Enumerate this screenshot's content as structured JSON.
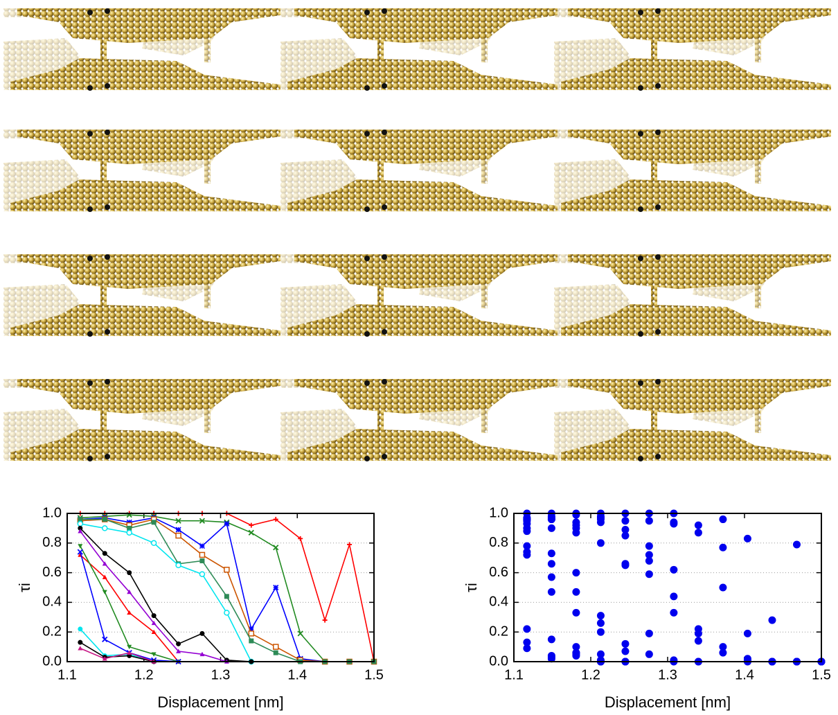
{
  "chart_data": [
    {
      "type": "line",
      "x_label": "Displacement [nm]",
      "y_label": "τi",
      "x": [
        1.117,
        1.149,
        1.181,
        1.213,
        1.245,
        1.276,
        1.308,
        1.34,
        1.372,
        1.404,
        1.436,
        1.468,
        1.5
      ],
      "xlim": [
        1.1,
        1.5
      ],
      "xticks": [
        1.1,
        1.2,
        1.3,
        1.4,
        1.5
      ],
      "ylim": [
        0,
        1
      ],
      "yticks": [
        {
          "value": 0,
          "label": "0.0"
        },
        {
          "value": 0.2,
          "label": "0.2"
        },
        {
          "value": 0.4,
          "label": "0.4"
        },
        {
          "value": 0.6,
          "label": "0.6"
        },
        {
          "value": 0.8,
          "label": "0.8"
        },
        {
          "value": 1,
          "label": "1.0"
        }
      ],
      "grid": true,
      "series": [
        {
          "color": "#ff0000",
          "marker": "plus",
          "values": [
            1.0,
            1.0,
            1.0,
            1.0,
            1.0,
            1.0,
            1.0,
            0.92,
            0.96,
            0.83,
            0.28,
            0.79,
            0.0
          ]
        },
        {
          "color": "#228b22",
          "marker": "x",
          "values": [
            0.97,
            0.98,
            0.99,
            0.98,
            0.95,
            0.95,
            0.94,
            0.87,
            0.77,
            0.19,
            0.0,
            0.0,
            0.0
          ]
        },
        {
          "color": "#0000ff",
          "marker": "star",
          "values": [
            0.96,
            0.97,
            0.94,
            0.97,
            0.89,
            0.78,
            0.93,
            0.22,
            0.5,
            0.02,
            0.0,
            0.0,
            0.0
          ]
        },
        {
          "color": "#cc5500",
          "marker": "open-square",
          "values": [
            0.95,
            0.96,
            0.92,
            0.96,
            0.85,
            0.72,
            0.62,
            0.19,
            0.1,
            0.01,
            0.0,
            0.0,
            0.0
          ]
        },
        {
          "color": "#2e8b57",
          "marker": "square",
          "values": [
            0.96,
            0.96,
            0.9,
            0.94,
            0.66,
            0.68,
            0.44,
            0.14,
            0.06,
            0.0,
            0.0,
            0.0,
            0.0
          ]
        },
        {
          "color": "#00e5ee",
          "marker": "open-circle",
          "values": [
            0.93,
            0.9,
            0.87,
            0.8,
            0.65,
            0.59,
            0.33,
            0.0,
            null,
            null,
            null,
            null,
            null
          ]
        },
        {
          "color": "#000000",
          "marker": "circle",
          "values": [
            0.9,
            0.73,
            0.6,
            0.31,
            0.12,
            0.19,
            0.01,
            0.0,
            null,
            null,
            null,
            null,
            null
          ]
        },
        {
          "color": "#9400d3",
          "marker": "triangle",
          "values": [
            0.88,
            0.66,
            0.47,
            0.26,
            0.07,
            0.05,
            0.0,
            null,
            null,
            null,
            null,
            null,
            null
          ]
        },
        {
          "color": "#ff0000",
          "marker": "triangle",
          "values": [
            0.72,
            0.57,
            0.33,
            0.2,
            0.0,
            null,
            null,
            null,
            null,
            null,
            null,
            null,
            null
          ]
        },
        {
          "color": "#228b22",
          "marker": "down-triangle",
          "values": [
            0.78,
            0.47,
            0.1,
            0.05,
            0.0,
            null,
            null,
            null,
            null,
            null,
            null,
            null,
            null
          ]
        },
        {
          "color": "#0000ff",
          "marker": "x",
          "values": [
            0.74,
            0.15,
            0.06,
            0.01,
            0.0,
            null,
            null,
            null,
            null,
            null,
            null,
            null,
            null
          ]
        },
        {
          "color": "#00e5ee",
          "marker": "circle",
          "values": [
            0.22,
            0.04,
            0.05,
            0.0,
            null,
            null,
            null,
            null,
            null,
            null,
            null,
            null,
            null
          ]
        },
        {
          "color": "#000000",
          "marker": "circle",
          "values": [
            0.13,
            0.03,
            0.04,
            0.0,
            null,
            null,
            null,
            null,
            null,
            null,
            null,
            null,
            null
          ]
        },
        {
          "color": "#c71585",
          "marker": "triangle",
          "values": [
            0.09,
            0.02,
            0.06,
            0.0,
            null,
            null,
            null,
            null,
            null,
            null,
            null,
            null,
            null
          ]
        }
      ]
    },
    {
      "type": "scatter",
      "x_label": "Displacement [nm]",
      "y_label": "τi",
      "x": [
        1.117,
        1.149,
        1.181,
        1.213,
        1.245,
        1.276,
        1.308,
        1.34,
        1.372,
        1.404,
        1.436,
        1.468,
        1.5
      ],
      "xlim": [
        1.1,
        1.5
      ],
      "xticks": [
        1.1,
        1.2,
        1.3,
        1.4,
        1.5
      ],
      "ylim": [
        0,
        1
      ],
      "yticks": [
        {
          "value": 0,
          "label": "0.0"
        },
        {
          "value": 0.2,
          "label": "0.2"
        },
        {
          "value": 0.4,
          "label": "0.4"
        },
        {
          "value": 0.6,
          "label": "0.6"
        },
        {
          "value": 0.8,
          "label": "0.8"
        },
        {
          "value": 1,
          "label": "1.0"
        }
      ],
      "grid": true,
      "color": "#0000ee",
      "series": [
        {
          "values": [
            1.0,
            1.0,
            1.0,
            1.0,
            1.0,
            1.0,
            1.0,
            0.92,
            0.96,
            0.83,
            0.28,
            0.79,
            0.0
          ]
        },
        {
          "values": [
            0.97,
            0.98,
            0.99,
            0.98,
            0.95,
            0.95,
            0.94,
            0.87,
            0.77,
            0.19,
            0.0,
            0.0,
            0.0
          ]
        },
        {
          "values": [
            0.96,
            0.97,
            0.94,
            0.97,
            0.89,
            0.78,
            0.93,
            0.22,
            0.5,
            0.02,
            0.0,
            0.0,
            0.0
          ]
        },
        {
          "values": [
            0.95,
            0.96,
            0.92,
            0.96,
            0.85,
            0.72,
            0.62,
            0.19,
            0.1,
            0.01,
            0.0,
            0.0,
            0.0
          ]
        },
        {
          "values": [
            0.96,
            0.96,
            0.9,
            0.94,
            0.66,
            0.68,
            0.44,
            0.14,
            0.06,
            0.0,
            0.0,
            0.0,
            0.0
          ]
        },
        {
          "values": [
            0.93,
            0.9,
            0.87,
            0.8,
            0.65,
            0.59,
            0.33,
            0.0,
            null,
            null,
            null,
            null,
            null
          ]
        },
        {
          "values": [
            0.9,
            0.73,
            0.6,
            0.31,
            0.12,
            0.19,
            0.01,
            0.0,
            null,
            null,
            null,
            null,
            null
          ]
        },
        {
          "values": [
            0.88,
            0.66,
            0.47,
            0.26,
            0.07,
            0.05,
            0.0,
            null,
            null,
            null,
            null,
            null,
            null
          ]
        },
        {
          "values": [
            0.72,
            0.57,
            0.33,
            0.2,
            0.0,
            null,
            null,
            null,
            null,
            null,
            null,
            null,
            null
          ]
        },
        {
          "values": [
            0.78,
            0.47,
            0.1,
            0.05,
            0.0,
            null,
            null,
            null,
            null,
            null,
            null,
            null,
            null
          ]
        },
        {
          "values": [
            0.74,
            0.15,
            0.06,
            0.01,
            0.0,
            null,
            null,
            null,
            null,
            null,
            null,
            null,
            null
          ]
        },
        {
          "values": [
            0.22,
            0.04,
            0.05,
            0.0,
            null,
            null,
            null,
            null,
            null,
            null,
            null,
            null,
            null
          ]
        },
        {
          "values": [
            0.13,
            0.03,
            0.04,
            0.0,
            null,
            null,
            null,
            null,
            null,
            null,
            null,
            null,
            null
          ]
        },
        {
          "values": [
            0.09,
            0.02,
            0.06,
            0.0,
            null,
            null,
            null,
            null,
            null,
            null,
            null,
            null,
            null
          ]
        }
      ]
    }
  ]
}
